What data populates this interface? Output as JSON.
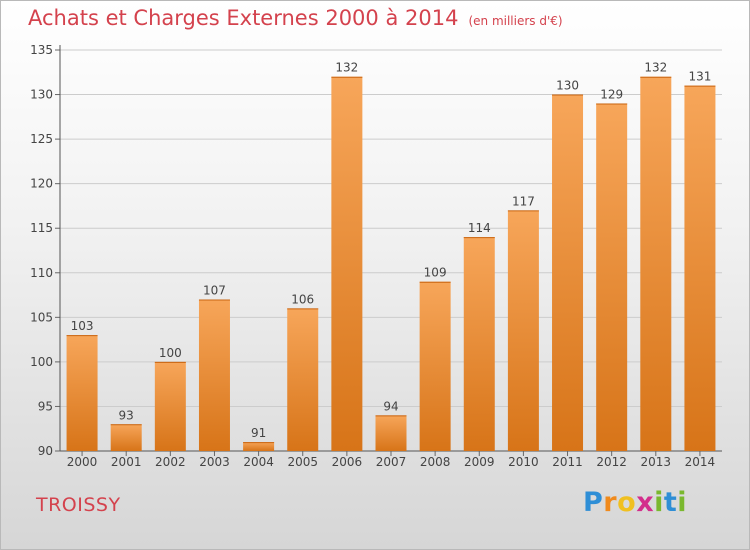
{
  "title": "Achats et Charges Externes 2000 à 2014",
  "unit_note": "(en milliers d'€)",
  "commune": "TROISSY",
  "logo": {
    "letters": [
      "P",
      "r",
      "o",
      "x",
      "i",
      "t",
      "i"
    ],
    "colors": [
      "#2e8ed6",
      "#f08a1c",
      "#f0c020",
      "#d32e8c",
      "#7ab82e",
      "#2e8ed6",
      "#7ab82e"
    ]
  },
  "colors": {
    "title": "#d4424d",
    "bar_light": "#f7a65a",
    "bar_dark": "#d77418",
    "grid": "#cccccc"
  },
  "chart_data": {
    "type": "bar",
    "categories": [
      "2000",
      "2001",
      "2002",
      "2003",
      "2004",
      "2005",
      "2006",
      "2007",
      "2008",
      "2009",
      "2010",
      "2011",
      "2012",
      "2013",
      "2014"
    ],
    "values": [
      103,
      93,
      100,
      107,
      91,
      106,
      132,
      94,
      109,
      114,
      117,
      130,
      129,
      132,
      131
    ],
    "ylim": [
      90,
      135
    ],
    "yticks": [
      90,
      95,
      100,
      105,
      110,
      115,
      120,
      125,
      130,
      135
    ],
    "grid": true,
    "data_labels": true
  }
}
